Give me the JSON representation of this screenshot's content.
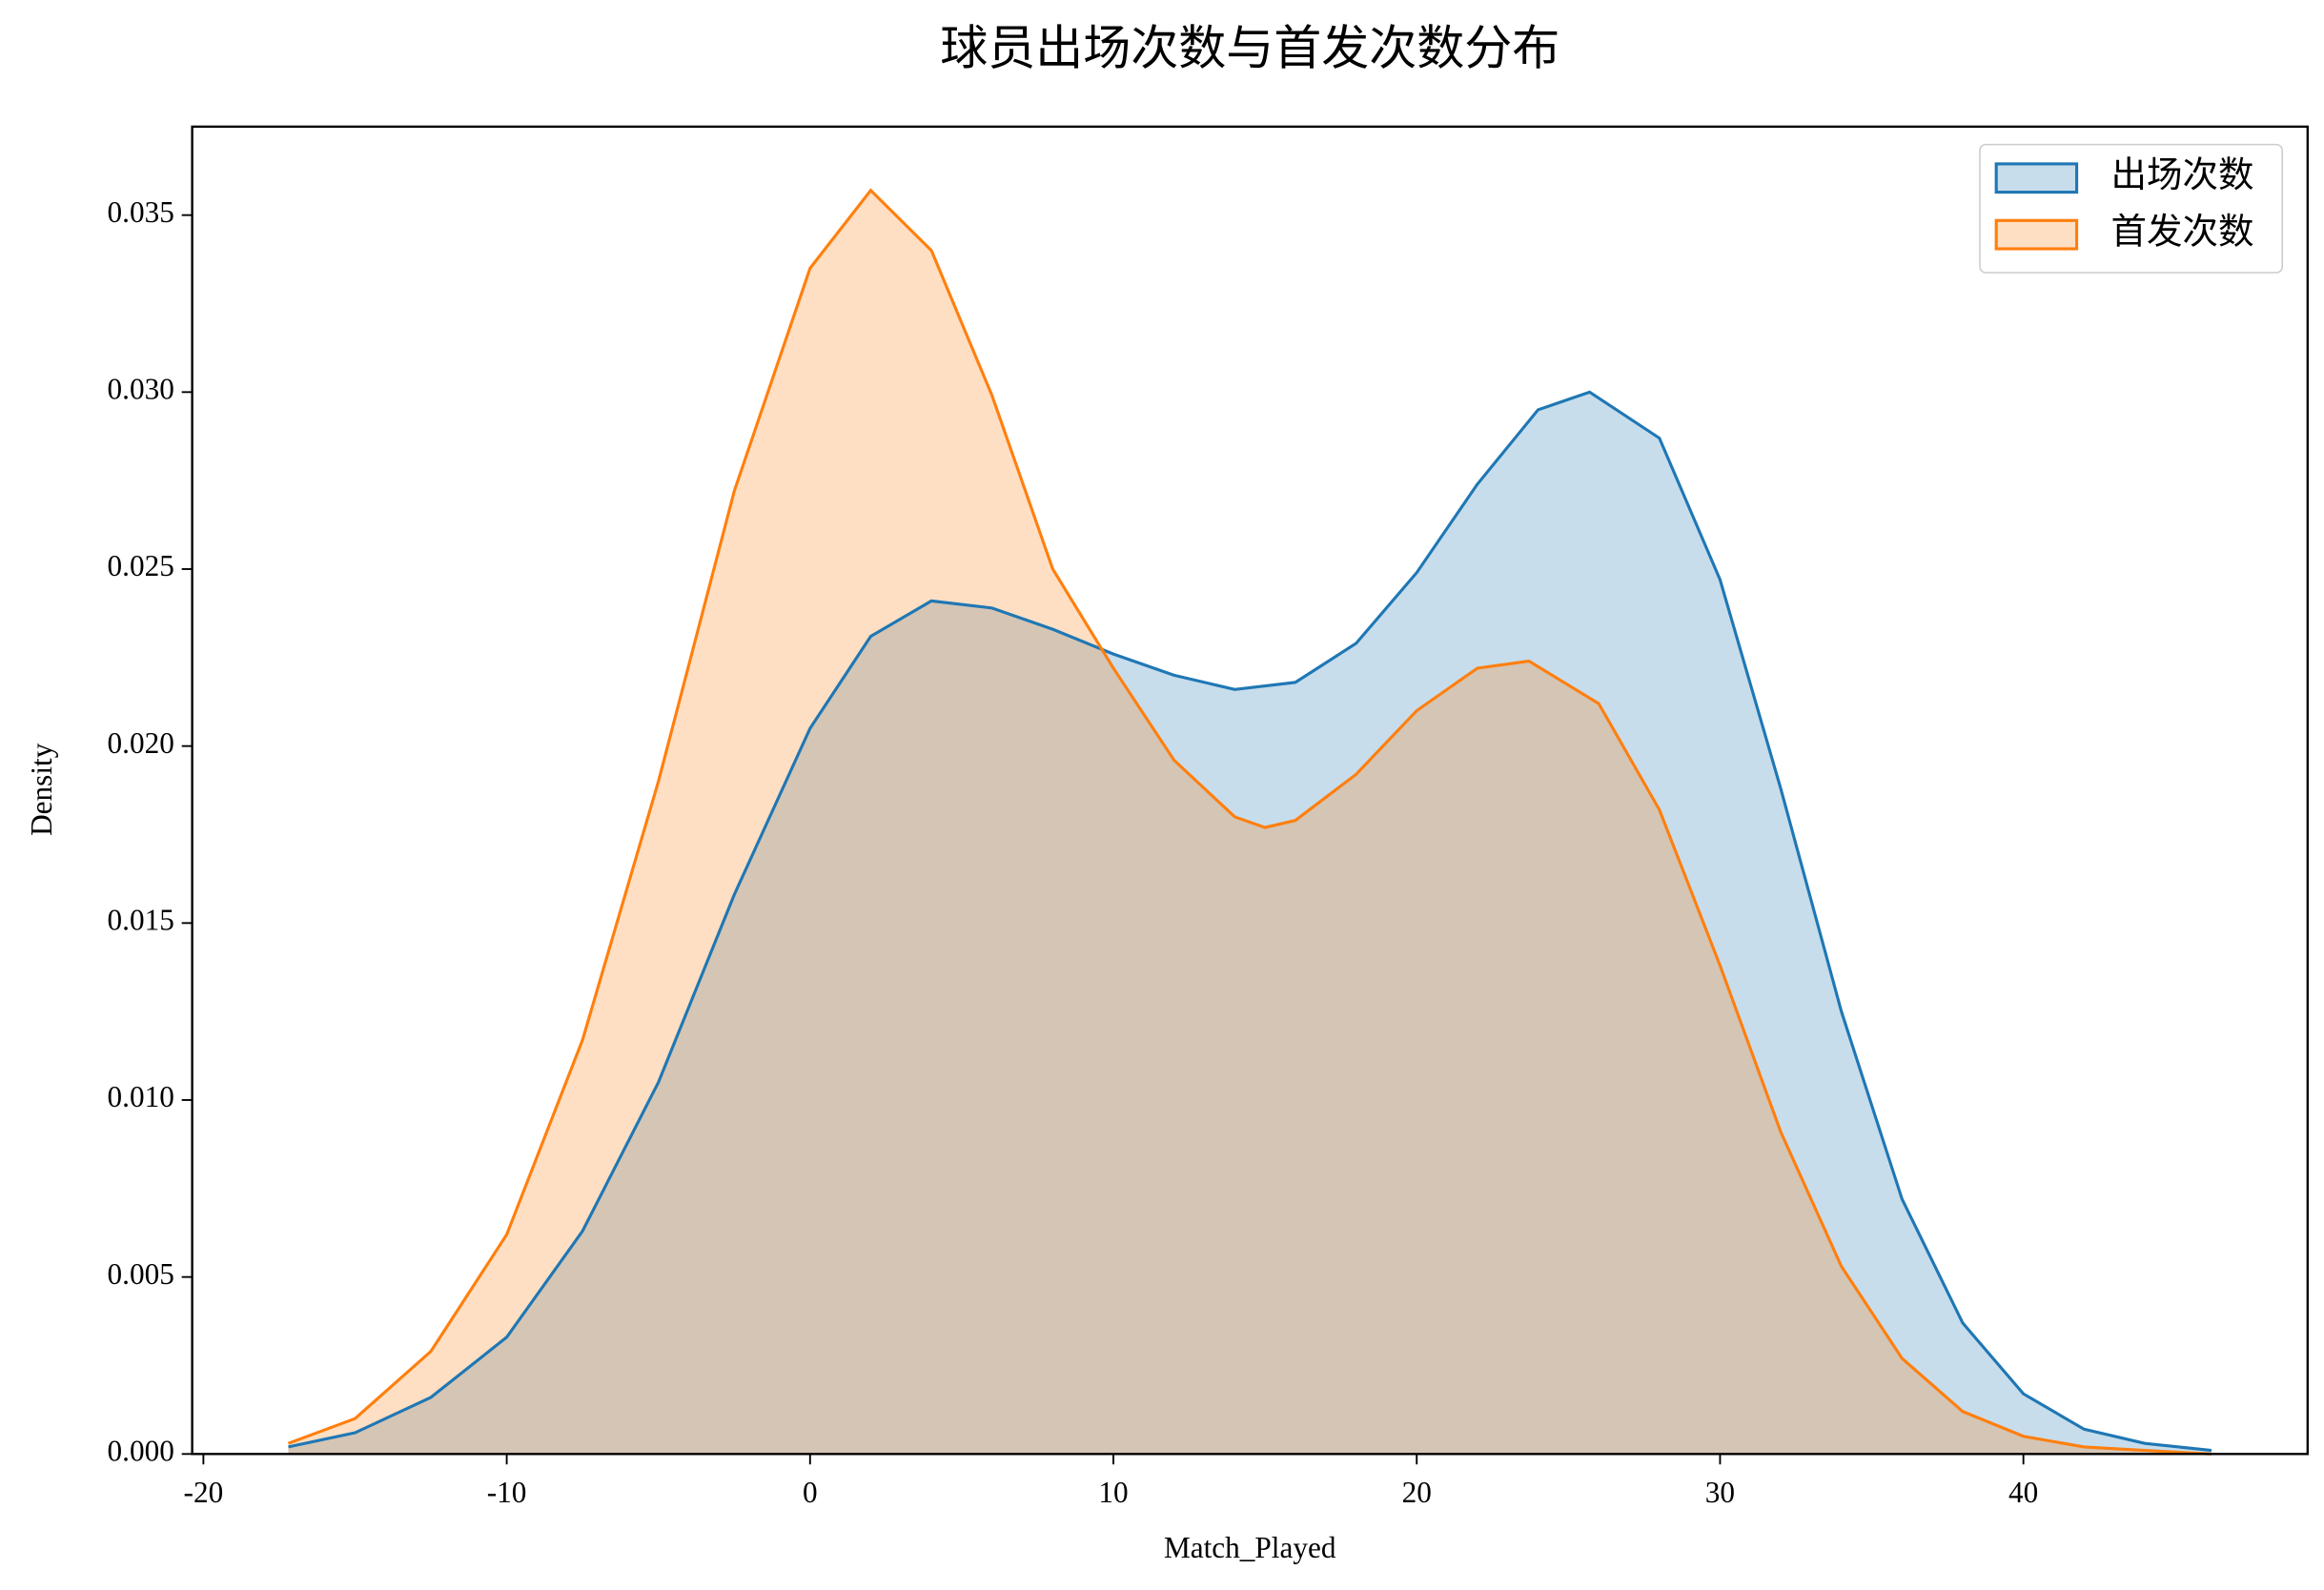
{
  "chart_data": {
    "type": "kde",
    "title": "球员出场次数与首发次数分布",
    "xlabel": "Match_Played",
    "ylabel": "Density",
    "xlim": [
      -20.37,
      49.37
    ],
    "ylim": [
      0,
      0.0375
    ],
    "xticks": [
      -20,
      -10,
      0,
      10,
      20,
      30,
      40
    ],
    "yticks": [
      {
        "value": 0,
        "label": "0.000"
      },
      {
        "value": 0.005,
        "label": "0.005"
      },
      {
        "value": 0.01,
        "label": "0.010"
      },
      {
        "value": 0.015,
        "label": "0.015"
      },
      {
        "value": 0.02,
        "label": "0.020"
      },
      {
        "value": 0.025,
        "label": "0.025"
      },
      {
        "value": 0.03,
        "label": "0.030"
      },
      {
        "value": 0.035,
        "label": "0.035"
      }
    ],
    "legend": "upper right",
    "series": [
      {
        "name": "出场次数",
        "color": "#1f77b4",
        "x": [
          -17.2,
          -15,
          -12.5,
          -10,
          -7.5,
          -5,
          -2.5,
          0,
          2,
          4,
          6,
          8,
          10,
          12,
          14,
          16,
          18,
          20,
          22,
          24,
          25.7,
          28,
          30,
          32,
          34,
          36,
          38,
          40,
          42,
          44,
          46.2
        ],
        "values": [
          0.0002,
          0.0006,
          0.0016,
          0.0033,
          0.0063,
          0.0105,
          0.0158,
          0.0205,
          0.0231,
          0.0241,
          0.0239,
          0.0233,
          0.0226,
          0.022,
          0.0216,
          0.0218,
          0.0229,
          0.0249,
          0.0274,
          0.0295,
          0.03,
          0.0287,
          0.0247,
          0.0188,
          0.0125,
          0.0072,
          0.0037,
          0.0017,
          0.0007,
          0.0003,
          0.0001
        ]
      },
      {
        "name": "首发次数",
        "color": "#ff7f0e",
        "x": [
          -17.2,
          -15,
          -12.5,
          -10,
          -7.5,
          -5,
          -2.5,
          0,
          2,
          4,
          6,
          8,
          10,
          12,
          14,
          15,
          16,
          18,
          20,
          22,
          23.7,
          26,
          28,
          30,
          32,
          34,
          36,
          38,
          40,
          42,
          44,
          46.2
        ],
        "values": [
          0.0003,
          0.001,
          0.0029,
          0.0062,
          0.0117,
          0.019,
          0.0272,
          0.0335,
          0.0357,
          0.034,
          0.0299,
          0.025,
          0.0222,
          0.0196,
          0.018,
          0.0177,
          0.0179,
          0.0192,
          0.021,
          0.0222,
          0.0224,
          0.0212,
          0.0182,
          0.0138,
          0.0091,
          0.0053,
          0.0027,
          0.0012,
          0.0005,
          0.0002,
          0.0001,
          0
        ]
      }
    ]
  }
}
